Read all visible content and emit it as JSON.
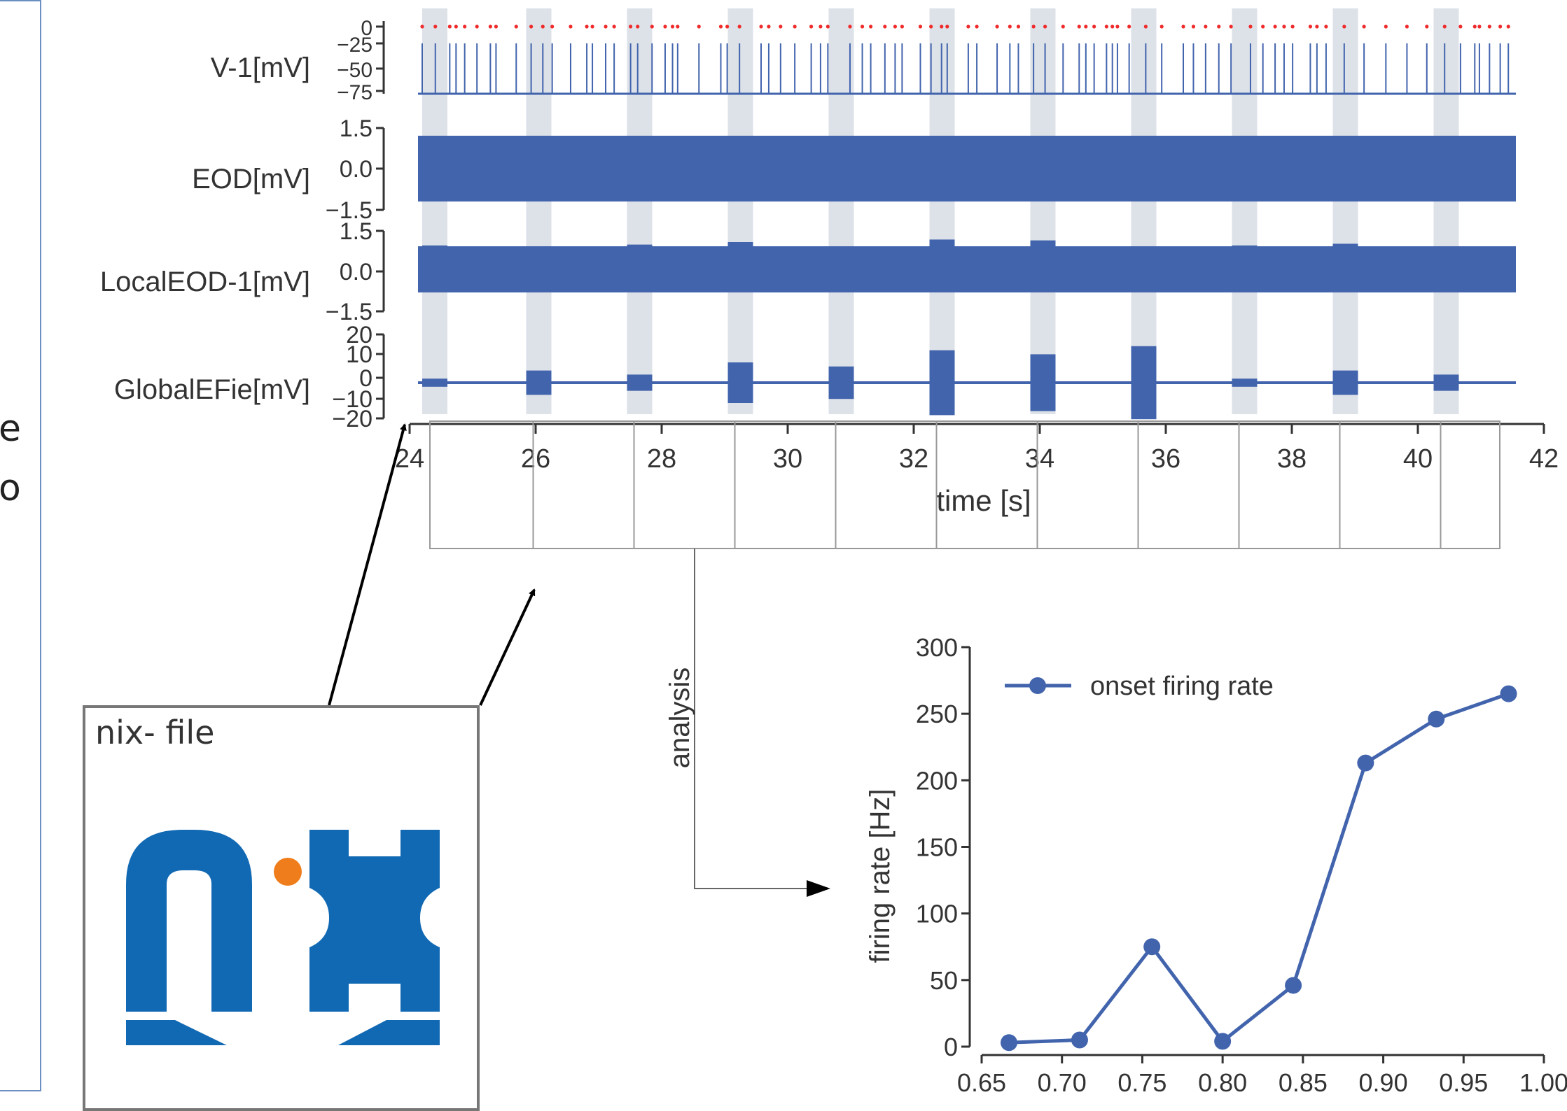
{
  "sidebar": {
    "clipped_chars": [
      "e",
      "o"
    ]
  },
  "nix_file": {
    "title": "nix- file",
    "logo_colors": {
      "primary": "#1169b4",
      "dot": "#ef7d1b"
    }
  },
  "analysis_label": "analysis",
  "colors": {
    "trace": "#4264ad",
    "spike_marker": "#ef2b2b",
    "highlight": "#dde1e8",
    "axis": "#333333"
  },
  "traces_plot": {
    "x_label": "time [s]",
    "x_ticks": [
      "24",
      "26",
      "28",
      "30",
      "32",
      "34",
      "36",
      "38",
      "40",
      "42"
    ],
    "xlim": [
      24,
      42
    ],
    "highlight_intervals": [
      [
        24.2,
        24.6
      ],
      [
        25.85,
        26.25
      ],
      [
        27.45,
        27.85
      ],
      [
        29.05,
        29.45
      ],
      [
        30.65,
        31.05
      ],
      [
        32.25,
        32.65
      ],
      [
        33.85,
        34.25
      ],
      [
        35.45,
        35.85
      ],
      [
        37.05,
        37.45
      ],
      [
        38.65,
        39.05
      ],
      [
        40.25,
        40.65
      ]
    ],
    "panels": [
      {
        "label": "V-1[mV]",
        "ticks": [
          "0",
          "−25",
          "−50",
          "−75"
        ]
      },
      {
        "label": "EOD[mV]",
        "ticks": [
          "1.5",
          "0.0",
          "−1.5"
        ]
      },
      {
        "label": "LocalEOD-1[mV]",
        "ticks": [
          "1.5",
          "0.0",
          "−1.5"
        ]
      },
      {
        "label": "GlobalEFie[mV]",
        "ticks": [
          "20",
          "10",
          "0",
          "−10",
          "−20"
        ]
      }
    ],
    "global_efield_amplitudes": [
      1,
      3,
      2,
      5,
      4,
      8,
      7,
      9,
      1,
      3,
      2
    ]
  },
  "chart_data": {
    "type": "line",
    "x": [
      0.667,
      0.711,
      0.756,
      0.8,
      0.844,
      0.889,
      0.933,
      0.978
    ],
    "series": [
      {
        "name": "onset firing rate",
        "values": [
          3,
          5,
          75,
          4,
          46,
          213,
          246,
          265
        ]
      }
    ],
    "ylabel": "firing rate [Hz]",
    "xlabel": "",
    "xlim": [
      0.65,
      1.0
    ],
    "ylim": [
      0,
      300
    ],
    "x_ticks": [
      "0.65",
      "0.70",
      "0.75",
      "0.80",
      "0.85",
      "0.90",
      "0.95",
      "1.00"
    ],
    "y_ticks": [
      "0",
      "50",
      "100",
      "150",
      "200",
      "250",
      "300"
    ],
    "legend_position": "top-left"
  }
}
